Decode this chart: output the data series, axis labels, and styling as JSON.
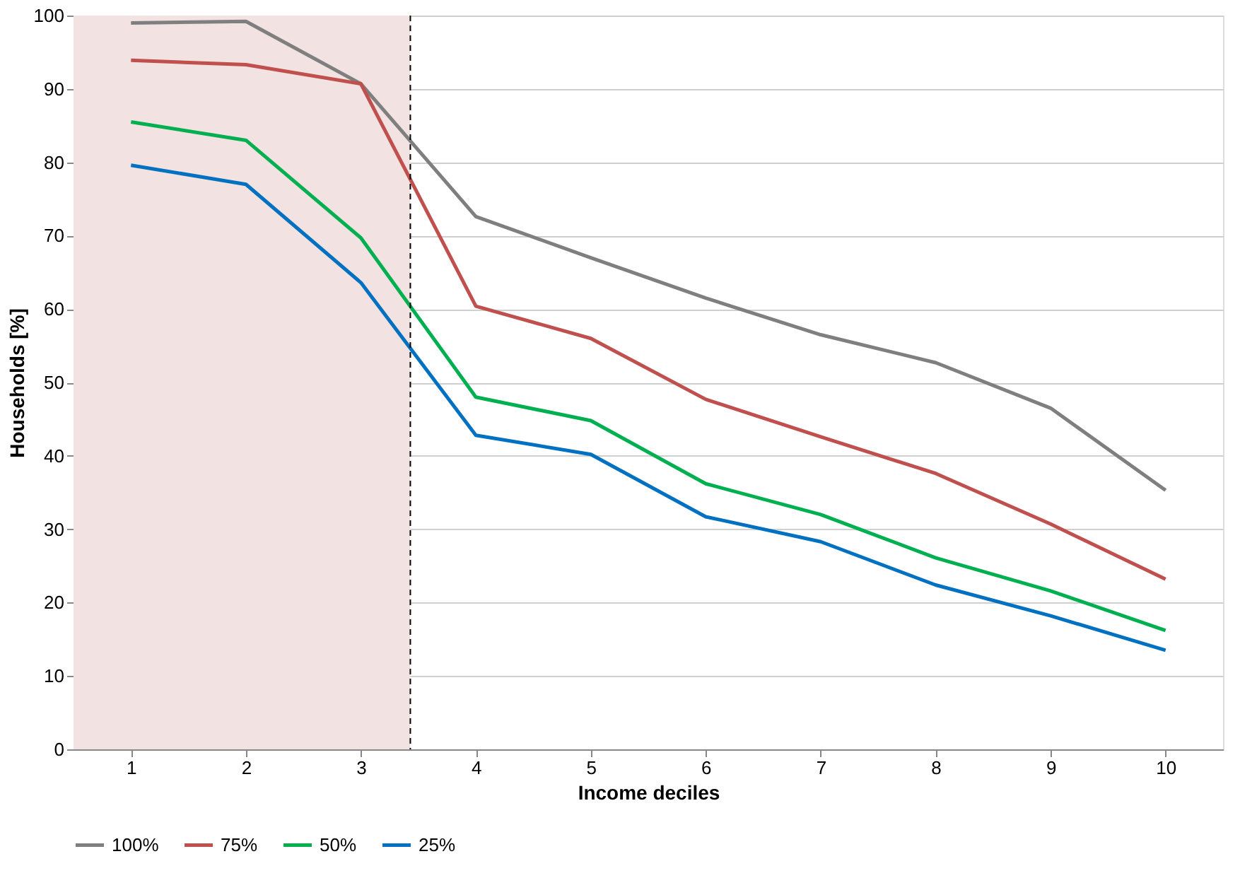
{
  "chart_data": {
    "type": "line",
    "xlabel": "Income deciles",
    "ylabel": "Households [%]",
    "x": [
      1,
      2,
      3,
      4,
      5,
      6,
      7,
      8,
      9,
      10
    ],
    "xlim": [
      0.5,
      10.5
    ],
    "xticks": [
      1,
      2,
      3,
      4,
      5,
      6,
      7,
      8,
      9,
      10
    ],
    "ylim": [
      0,
      100
    ],
    "yticks": [
      0,
      10,
      20,
      30,
      40,
      50,
      60,
      70,
      80,
      90,
      100
    ],
    "grid": "y",
    "legend": "bottom",
    "marker": "none",
    "line_style": "solid",
    "bands": [
      {
        "axis": "x",
        "from": 0.5,
        "to": 3.43,
        "color": "#f2e2e1"
      }
    ],
    "ref_lines": [
      {
        "axis": "x",
        "value": 3.43,
        "color": "#000000",
        "line_style": "dashed"
      }
    ],
    "series": [
      {
        "name": "100%",
        "color": "#7f7f7f",
        "values": [
          99.0,
          99.2,
          90.7,
          72.6,
          67.0,
          61.5,
          56.5,
          52.7,
          46.5,
          35.3
        ]
      },
      {
        "name": "75%",
        "color": "#c0504d",
        "values": [
          93.9,
          93.3,
          90.7,
          60.4,
          56.0,
          47.7,
          42.6,
          37.6,
          30.7,
          23.2
        ]
      },
      {
        "name": "50%",
        "color": "#00b050",
        "values": [
          85.5,
          83.0,
          69.7,
          48.0,
          44.8,
          36.2,
          32.0,
          26.1,
          21.6,
          16.2
        ]
      },
      {
        "name": "25%",
        "color": "#0070c0",
        "values": [
          79.6,
          77.0,
          63.6,
          42.8,
          40.2,
          31.7,
          28.3,
          22.4,
          18.2,
          13.5
        ]
      }
    ]
  }
}
